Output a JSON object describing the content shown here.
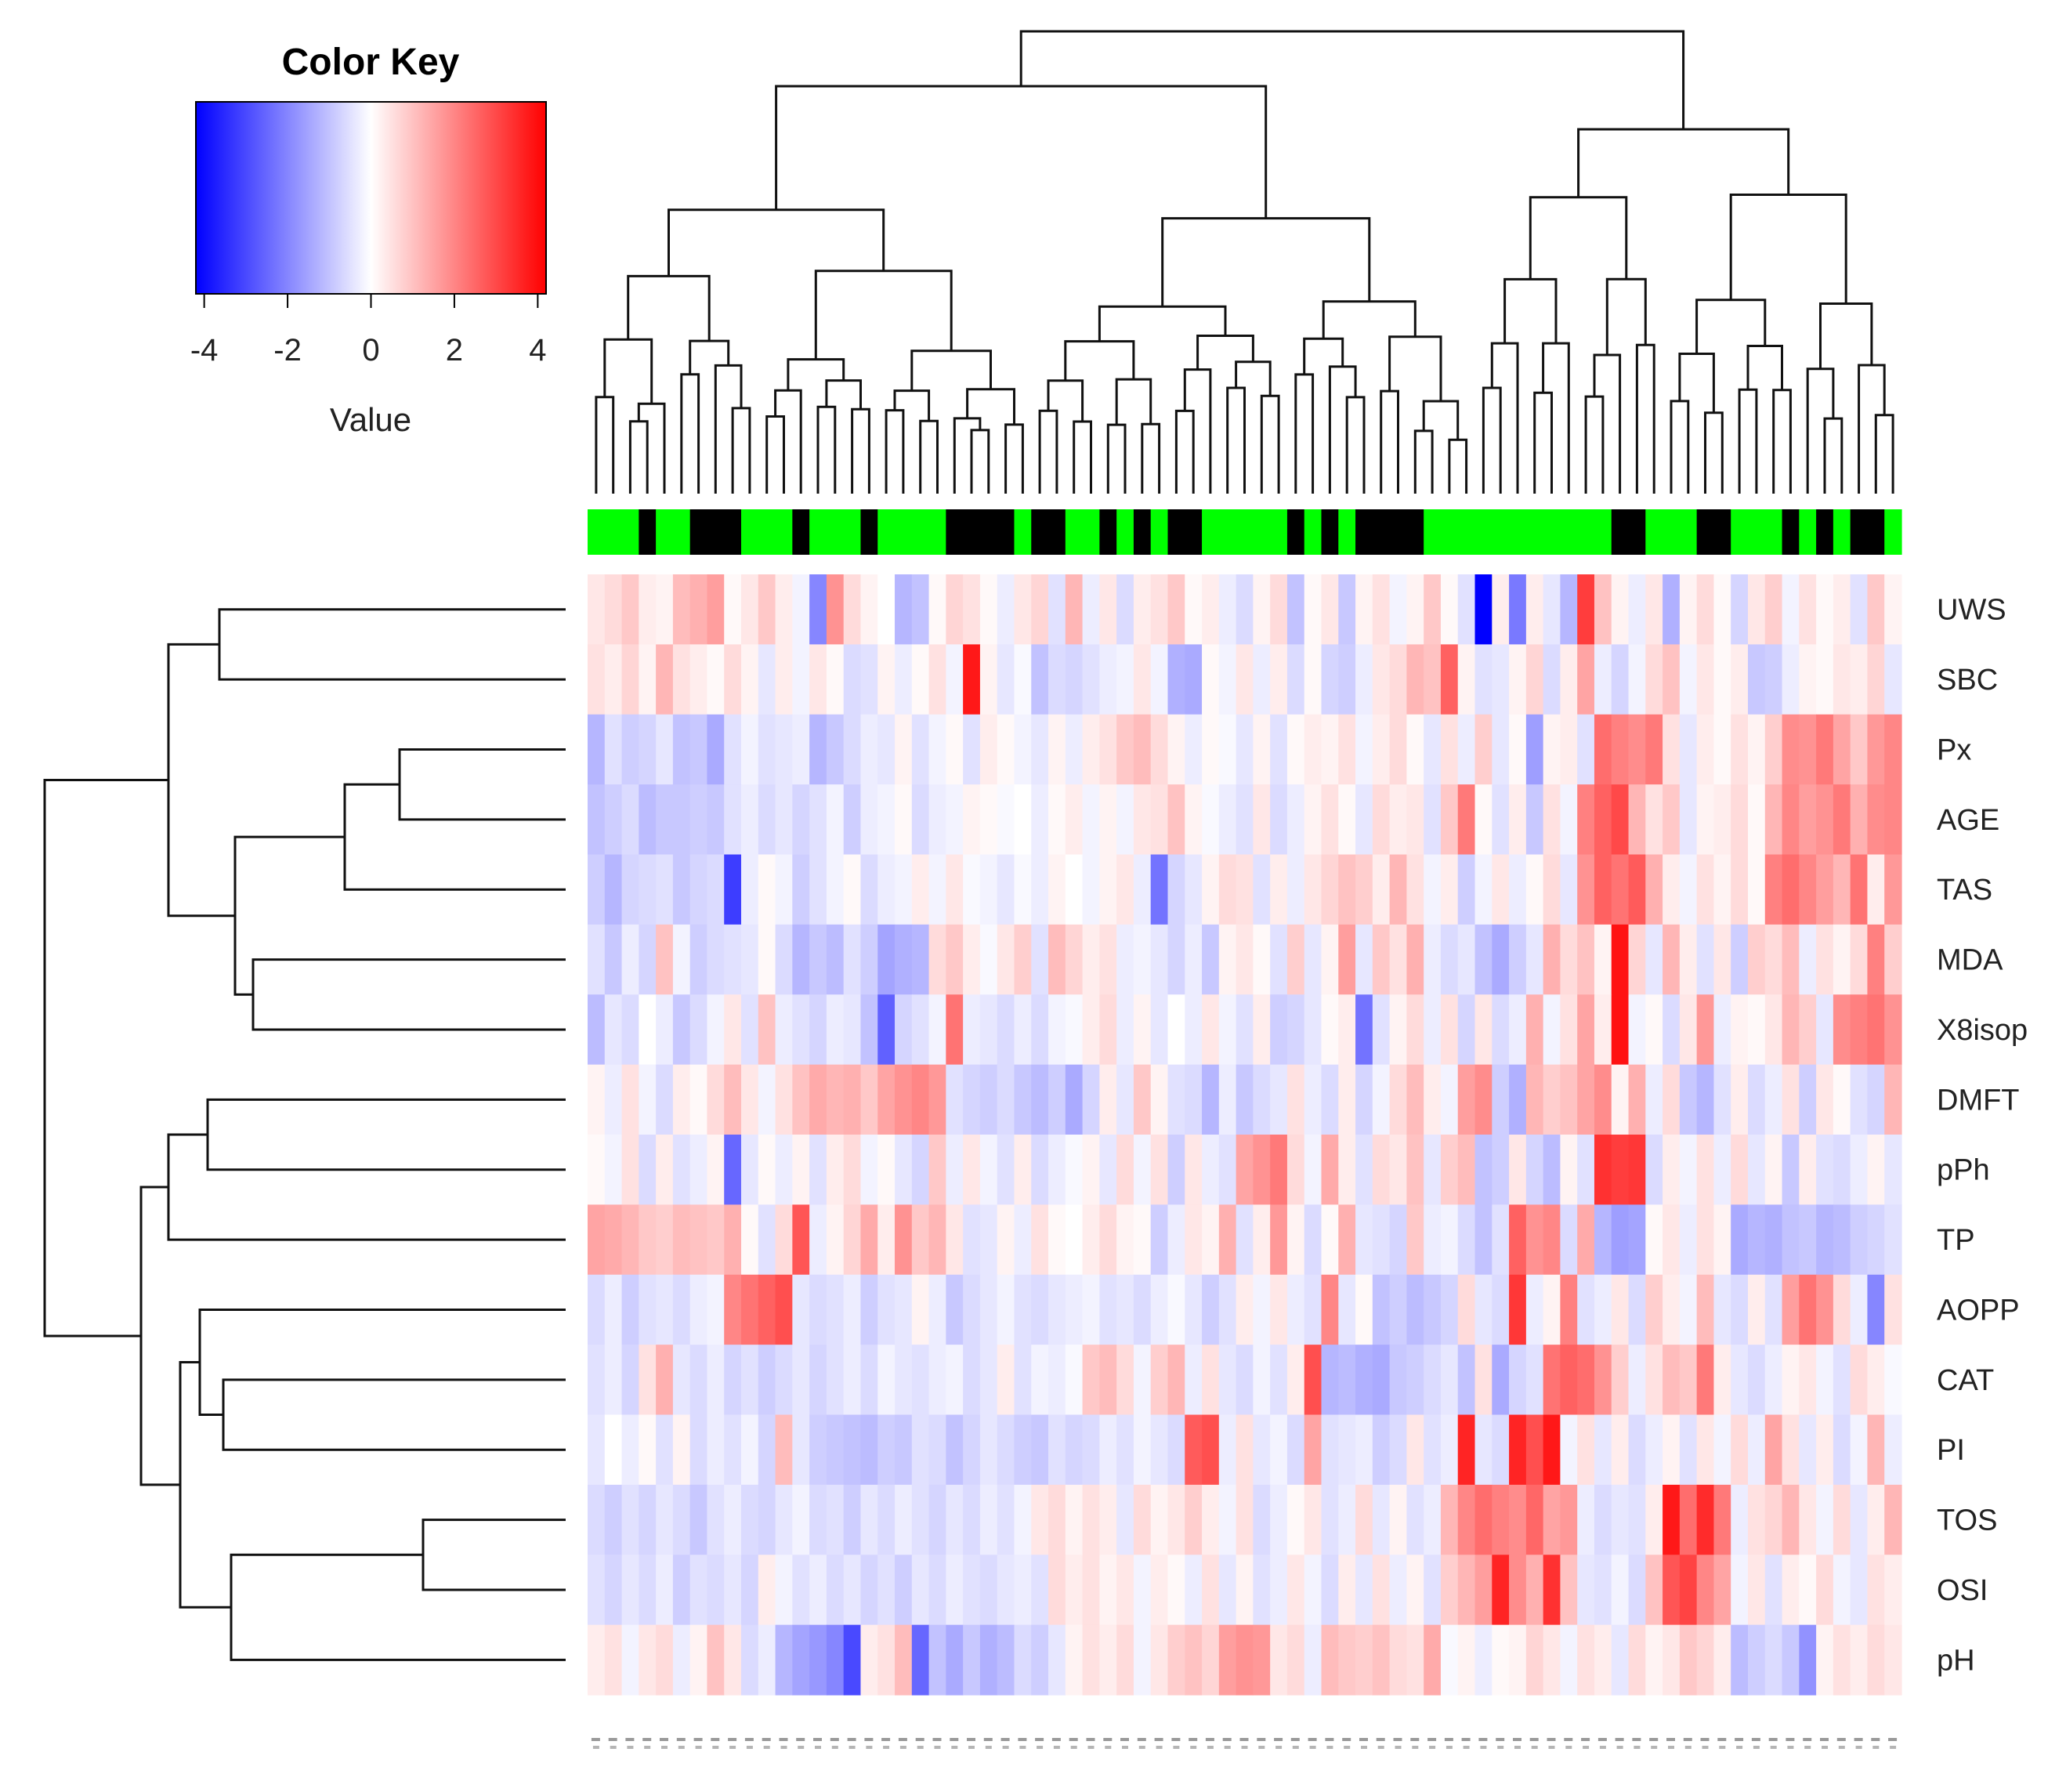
{
  "chart_data": {
    "type": "heatmap",
    "title": "",
    "color_key": {
      "title": "Color Key",
      "label": "Value",
      "ticks": [
        "-4",
        "-2",
        "0",
        "2",
        "4"
      ],
      "range": [
        -4.2,
        4.2
      ],
      "colors": {
        "low": "#0000ff",
        "mid": "#ffffff",
        "high": "#ff0000"
      }
    },
    "rows": [
      "UWS",
      "SBC",
      "Px",
      "AGE",
      "TAS",
      "MDA",
      "X8isop",
      "DMFT",
      "pPh",
      "TP",
      "AOPP",
      "CAT",
      "PI",
      "TOS",
      "OSI",
      "pH"
    ],
    "n_columns": 77,
    "column_groups": [
      0,
      0,
      0,
      1,
      0,
      0,
      1,
      1,
      1,
      0,
      0,
      0,
      1,
      0,
      0,
      0,
      1,
      0,
      0,
      0,
      0,
      1,
      1,
      1,
      1,
      0,
      1,
      1,
      0,
      0,
      1,
      0,
      1,
      0,
      1,
      1,
      0,
      0,
      0,
      0,
      0,
      1,
      0,
      1,
      0,
      1,
      1,
      1,
      1,
      0,
      0,
      0,
      0,
      0,
      0,
      0,
      0,
      0,
      0,
      0,
      1,
      1,
      0,
      0,
      0,
      1,
      1,
      0,
      0,
      0,
      1,
      0,
      1,
      0,
      1,
      1,
      0
    ],
    "column_group_colors": [
      "#00ff00",
      "#000000"
    ],
    "values": [
      [
        0.4,
        0.6,
        0.9,
        0.3,
        0.2,
        1.1,
        1.3,
        1.6,
        0.1,
        0.4,
        0.9,
        0.3,
        -0.2,
        -2.0,
        1.8,
        0.6,
        0.2,
        0.0,
        -1.2,
        -1.0,
        0.1,
        0.7,
        0.5,
        0.1,
        -0.3,
        0.4,
        0.7,
        -0.5,
        1.2,
        -0.3,
        0.4,
        -0.6,
        0.3,
        0.5,
        0.9,
        0.1,
        0.3,
        -0.3,
        -0.6,
        0.2,
        0.6,
        -1.0,
        0.1,
        0.4,
        -0.9,
        0.2,
        0.5,
        -0.2,
        0.2,
        0.9,
        0.1,
        -0.5,
        -4.2,
        0.3,
        -2.2,
        0.3,
        -0.4,
        -1.2,
        3.2,
        1.0,
        0.2,
        -0.3,
        0.4,
        -1.3,
        0.2,
        0.6,
        0.1,
        -0.7,
        0.4,
        0.8,
        -0.2,
        0.5,
        0.1,
        0.3,
        -0.5,
        0.9,
        0.2
      ],
      [
        0.5,
        0.3,
        0.7,
        0.2,
        1.2,
        0.5,
        0.3,
        0.1,
        0.6,
        0.2,
        -0.4,
        0.3,
        -0.2,
        0.4,
        0.1,
        -0.6,
        -0.5,
        0.2,
        -0.3,
        0.1,
        0.5,
        -0.2,
        3.8,
        0.2,
        -0.4,
        -0.1,
        -1.0,
        -0.6,
        -0.7,
        -0.5,
        -0.3,
        -0.2,
        0.4,
        -0.2,
        -1.3,
        -1.4,
        0.1,
        -0.2,
        0.4,
        -0.3,
        0.3,
        -0.6,
        0.1,
        -0.7,
        -0.8,
        -0.3,
        0.4,
        0.6,
        1.2,
        1.0,
        2.6,
        0.2,
        -0.5,
        -0.4,
        0.2,
        0.7,
        -0.6,
        0.3,
        1.5,
        -0.3,
        -0.7,
        -0.2,
        0.6,
        1.0,
        -0.2,
        0.4,
        0.1,
        0.3,
        -0.9,
        -0.8,
        -0.3,
        0.2,
        0.1,
        0.4,
        0.3,
        0.7,
        -0.4
      ],
      [
        -1.2,
        -0.5,
        -0.8,
        -0.7,
        -0.4,
        -1.0,
        -0.9,
        -1.4,
        -0.5,
        -0.2,
        -0.5,
        -0.4,
        -0.3,
        -1.2,
        -0.9,
        -0.6,
        -0.3,
        -0.4,
        0.2,
        -0.5,
        -0.2,
        0.1,
        -0.5,
        0.3,
        0.1,
        -0.2,
        -0.4,
        0.2,
        -0.3,
        0.3,
        0.5,
        0.9,
        1.1,
        0.6,
        0.2,
        -0.3,
        0.1,
        -0.1,
        -0.4,
        0.2,
        -0.5,
        0.1,
        0.3,
        0.2,
        0.5,
        -0.2,
        0.3,
        0.6,
        0.1,
        -0.4,
        0.5,
        -0.3,
        0.8,
        -0.4,
        0.1,
        -1.6,
        0.2,
        0.3,
        -0.5,
        2.4,
        2.1,
        1.9,
        2.2,
        0.5,
        -0.4,
        0.3,
        0.1,
        0.5,
        0.2,
        0.8,
        1.9,
        1.8,
        2.2,
        1.5,
        0.9,
        1.7,
        2.0
      ],
      [
        -1.0,
        -0.8,
        -0.6,
        -1.1,
        -0.9,
        -0.9,
        -0.8,
        -0.9,
        -0.5,
        -0.3,
        -0.6,
        -0.4,
        -0.7,
        -0.5,
        -0.2,
        -0.8,
        -0.3,
        -0.2,
        0.1,
        -0.6,
        -0.3,
        -0.2,
        0.2,
        0.1,
        -0.1,
        0.0,
        -0.3,
        0.1,
        0.3,
        -0.2,
        0.2,
        -0.2,
        0.4,
        0.5,
        1.0,
        0.2,
        -0.1,
        -0.3,
        -0.5,
        0.4,
        -0.6,
        -0.3,
        0.2,
        0.5,
        0.1,
        -0.4,
        0.6,
        0.3,
        0.4,
        -0.5,
        0.9,
        2.2,
        0.1,
        -0.5,
        0.3,
        -0.9,
        0.5,
        -0.2,
        2.1,
        2.6,
        3.0,
        1.2,
        0.5,
        0.9,
        -0.4,
        0.2,
        0.3,
        0.6,
        0.1,
        1.2,
        2.0,
        1.6,
        1.8,
        2.2,
        1.3,
        1.9,
        2.0
      ],
      [
        -0.8,
        -1.2,
        -0.7,
        -0.6,
        -0.5,
        -0.9,
        -0.7,
        -0.6,
        -3.2,
        -0.3,
        0.1,
        -0.2,
        -0.8,
        -0.5,
        -0.2,
        0.1,
        -0.6,
        -0.3,
        -0.2,
        0.3,
        -0.2,
        0.4,
        -0.1,
        -0.2,
        -0.4,
        -0.1,
        -0.3,
        0.2,
        0.0,
        -0.2,
        0.2,
        0.4,
        -0.3,
        -2.3,
        -0.7,
        -0.4,
        0.2,
        0.6,
        0.5,
        -0.5,
        0.3,
        -0.3,
        0.4,
        0.7,
        1.0,
        0.8,
        0.3,
        1.2,
        0.5,
        -0.2,
        0.3,
        -0.8,
        -0.2,
        0.4,
        -0.3,
        0.1,
        0.6,
        -0.4,
        1.8,
        2.6,
        2.3,
        2.7,
        1.3,
        0.3,
        -0.2,
        0.5,
        0.2,
        0.6,
        0.1,
        2.1,
        2.4,
        2.0,
        1.6,
        1.2,
        2.3,
        0.3,
        1.7
      ],
      [
        -0.5,
        -0.9,
        -0.3,
        -0.7,
        1.0,
        -0.2,
        -0.8,
        -0.6,
        -0.5,
        -0.4,
        0.1,
        -0.6,
        -1.2,
        -0.9,
        -1.1,
        -0.5,
        -0.8,
        -1.5,
        -1.3,
        -1.2,
        0.6,
        0.9,
        0.3,
        -0.1,
        0.4,
        0.8,
        -0.5,
        1.1,
        0.7,
        0.3,
        0.5,
        -0.3,
        -0.2,
        -0.4,
        -0.7,
        -0.3,
        -0.9,
        0.2,
        0.4,
        0.1,
        -0.5,
        0.8,
        -0.4,
        0.2,
        1.6,
        -0.4,
        0.9,
        0.5,
        1.3,
        -0.3,
        -0.6,
        -0.4,
        -1.0,
        -1.4,
        -0.8,
        -0.4,
        1.3,
        0.6,
        1.0,
        0.2,
        3.9,
        0.7,
        -0.4,
        1.2,
        0.3,
        -0.5,
        0.4,
        -0.8,
        0.8,
        0.6,
        1.1,
        -0.3,
        0.5,
        0.2,
        0.6,
        2.1,
        0.8
      ],
      [
        -1.1,
        -0.4,
        -0.6,
        0.0,
        -0.3,
        -0.9,
        -0.6,
        -0.2,
        0.4,
        -0.5,
        1.0,
        -0.3,
        -0.5,
        -0.7,
        -0.3,
        -0.4,
        -1.0,
        -2.6,
        -0.7,
        -0.5,
        -0.2,
        2.3,
        -0.3,
        -0.4,
        -0.6,
        -0.3,
        -0.6,
        -0.2,
        -0.1,
        0.3,
        0.6,
        -0.3,
        0.2,
        -0.4,
        0.0,
        -0.3,
        0.4,
        -0.2,
        -0.5,
        0.3,
        -0.8,
        -0.7,
        -0.4,
        0.1,
        0.3,
        -2.3,
        -0.5,
        0.2,
        0.6,
        -0.3,
        0.5,
        -0.7,
        0.4,
        -0.6,
        -0.3,
        1.3,
        -0.2,
        0.5,
        1.5,
        0.3,
        3.9,
        -0.2,
        0.1,
        -0.6,
        0.4,
        1.7,
        -0.3,
        0.2,
        0.1,
        0.4,
        1.2,
        0.8,
        -0.4,
        1.9,
        2.1,
        2.3,
        1.8
      ],
      [
        0.2,
        -0.3,
        0.5,
        -0.2,
        -0.6,
        0.3,
        0.1,
        0.6,
        1.1,
        0.4,
        -0.2,
        0.5,
        1.0,
        1.4,
        1.2,
        1.3,
        0.9,
        1.5,
        1.8,
        2.0,
        1.7,
        -0.5,
        -0.7,
        -0.8,
        -0.6,
        -0.9,
        -1.1,
        -0.8,
        -1.4,
        -0.7,
        0.3,
        -0.4,
        0.9,
        0.2,
        -0.5,
        -0.6,
        -1.2,
        -0.3,
        -0.9,
        -0.6,
        -0.4,
        0.5,
        -0.3,
        -0.6,
        0.3,
        -0.7,
        -0.2,
        0.6,
        1.1,
        0.3,
        -0.2,
        1.6,
        1.9,
        -0.8,
        -1.3,
        1.2,
        0.8,
        1.0,
        1.5,
        1.9,
        0.2,
        1.3,
        -0.3,
        0.6,
        -0.9,
        -1.2,
        -0.5,
        0.3,
        -0.6,
        -0.3,
        0.5,
        -0.8,
        0.4,
        0.1,
        -0.5,
        -0.7,
        1.2
      ],
      [
        0.1,
        -0.2,
        0.5,
        -0.6,
        0.3,
        -0.5,
        -0.3,
        0.2,
        -2.5,
        -0.4,
        0.1,
        -0.3,
        0.2,
        -0.5,
        0.3,
        0.6,
        -0.2,
        0.1,
        -0.4,
        -0.7,
        0.9,
        -0.3,
        0.4,
        -0.2,
        -0.5,
        0.3,
        -0.6,
        -0.3,
        -0.1,
        0.2,
        -0.4,
        0.6,
        -0.2,
        0.5,
        -0.8,
        0.4,
        -0.3,
        -0.5,
        1.5,
        1.8,
        2.2,
        0.6,
        -0.2,
        1.4,
        0.3,
        -0.5,
        0.6,
        0.4,
        1.0,
        -0.4,
        0.8,
        1.1,
        -1.0,
        -0.8,
        0.4,
        -0.7,
        -1.1,
        0.2,
        -0.5,
        3.4,
        3.2,
        3.3,
        -0.6,
        0.3,
        -0.2,
        0.5,
        -0.3,
        0.6,
        -0.4,
        0.2,
        -0.9,
        0.3,
        -0.5,
        -0.6,
        -0.3,
        0.2,
        -0.4
      ],
      [
        1.5,
        1.4,
        1.2,
        0.9,
        0.8,
        1.1,
        1.0,
        0.9,
        1.3,
        0.1,
        -0.5,
        0.6,
        2.8,
        -0.3,
        0.2,
        0.7,
        1.4,
        0.3,
        1.8,
        0.9,
        1.2,
        0.4,
        -0.5,
        -0.4,
        0.2,
        -0.3,
        0.5,
        0.1,
        0.0,
        0.3,
        0.6,
        0.2,
        0.1,
        -0.8,
        -0.3,
        0.4,
        0.2,
        1.3,
        -0.5,
        0.3,
        1.7,
        0.2,
        -0.6,
        0.1,
        1.3,
        -0.4,
        -0.5,
        -0.7,
        0.9,
        -0.3,
        -0.2,
        -0.6,
        -1.0,
        -0.5,
        2.6,
        1.8,
        2.0,
        -0.6,
        1.4,
        -1.2,
        -1.6,
        -1.5,
        0.1,
        0.4,
        -0.3,
        0.5,
        0.2,
        -1.4,
        -1.2,
        -1.3,
        -1.0,
        -0.9,
        -1.2,
        -1.1,
        -0.8,
        -0.7,
        -0.5
      ],
      [
        -0.6,
        -0.3,
        -0.8,
        -0.5,
        -0.4,
        -0.6,
        -0.3,
        -0.2,
        2.0,
        2.3,
        2.6,
        2.9,
        -0.4,
        -0.6,
        -0.5,
        -0.3,
        -0.8,
        -0.5,
        -0.4,
        0.2,
        -0.3,
        -0.9,
        -0.6,
        -0.4,
        -0.2,
        -0.5,
        -0.6,
        -0.4,
        -0.3,
        -0.2,
        -0.5,
        -0.4,
        -0.6,
        -0.3,
        -0.1,
        -0.4,
        -0.8,
        -0.5,
        0.3,
        -0.2,
        0.4,
        -0.3,
        -0.5,
        2.0,
        -0.4,
        0.1,
        -1.0,
        -0.8,
        -1.1,
        -0.9,
        -0.7,
        0.6,
        -0.4,
        -0.6,
        3.3,
        -0.3,
        0.2,
        2.1,
        -0.5,
        -0.3,
        0.4,
        -0.6,
        0.8,
        0.3,
        -0.2,
        1.1,
        -0.4,
        -0.6,
        0.3,
        -0.5,
        1.6,
        2.3,
        1.8,
        0.6,
        -0.3,
        -2.0,
        0.5
      ],
      [
        -0.5,
        -0.3,
        -0.7,
        0.5,
        1.3,
        -0.4,
        -0.6,
        -0.3,
        -0.7,
        -0.5,
        -0.8,
        -0.6,
        -0.4,
        -0.7,
        -0.5,
        -0.3,
        -0.6,
        -0.2,
        -0.4,
        -0.5,
        -0.3,
        -0.2,
        -0.6,
        -0.4,
        0.3,
        -0.5,
        -0.2,
        -0.3,
        -0.1,
        0.9,
        1.1,
        0.6,
        -0.2,
        0.8,
        1.2,
        -0.3,
        0.5,
        -0.4,
        -0.6,
        -0.2,
        -0.5,
        0.3,
        2.9,
        -1.2,
        -1.1,
        -1.3,
        -1.4,
        -0.9,
        -0.8,
        -0.6,
        -0.4,
        -1.0,
        0.5,
        -1.4,
        -0.7,
        -0.5,
        2.3,
        2.6,
        2.4,
        1.8,
        0.8,
        -0.3,
        0.5,
        1.1,
        0.9,
        2.2,
        0.3,
        -0.4,
        -0.6,
        -0.3,
        0.2,
        0.4,
        -0.2,
        -0.5,
        0.6,
        0.3,
        -0.1
      ],
      [
        -0.4,
        0.0,
        -0.3,
        0.1,
        -0.5,
        0.2,
        -0.6,
        -0.3,
        -0.5,
        -0.2,
        -0.7,
        1.1,
        -0.4,
        -0.8,
        -0.9,
        -1.0,
        -1.1,
        -0.8,
        -0.9,
        -0.5,
        -0.6,
        -1.0,
        -0.7,
        -0.4,
        -0.6,
        -0.8,
        -0.9,
        -0.5,
        -0.7,
        -0.6,
        -0.3,
        -0.5,
        -0.2,
        -0.4,
        -0.6,
        2.7,
        2.9,
        -0.3,
        0.5,
        -0.4,
        -0.2,
        -0.6,
        1.5,
        -0.5,
        -0.4,
        -0.3,
        -0.8,
        -0.6,
        0.4,
        -0.5,
        -0.3,
        3.6,
        -0.4,
        -0.6,
        3.6,
        2.9,
        3.8,
        -0.2,
        0.5,
        -0.4,
        0.3,
        -0.6,
        -0.3,
        0.2,
        -0.5,
        0.4,
        -0.2,
        0.6,
        -0.3,
        1.5,
        0.5,
        -0.4,
        0.3,
        -0.6,
        -0.2,
        1.2,
        -0.3
      ],
      [
        -0.6,
        -0.8,
        -0.5,
        -0.7,
        -0.4,
        -0.6,
        -0.9,
        -0.5,
        -0.3,
        -0.6,
        -0.7,
        -0.4,
        -0.2,
        -0.6,
        -0.5,
        -0.8,
        -0.4,
        -0.6,
        -0.3,
        -0.5,
        -0.7,
        -0.4,
        -0.6,
        -0.3,
        -0.5,
        -0.2,
        0.4,
        0.6,
        0.2,
        0.5,
        0.3,
        -0.4,
        0.6,
        0.2,
        0.4,
        0.8,
        0.3,
        -0.2,
        0.5,
        -0.6,
        -0.3,
        0.1,
        0.4,
        -0.5,
        -0.3,
        0.6,
        -0.4,
        0.2,
        -0.5,
        -0.3,
        1.2,
        2.0,
        2.4,
        2.1,
        1.9,
        2.5,
        1.5,
        1.7,
        -0.3,
        -0.6,
        -0.4,
        -0.5,
        0.3,
        3.8,
        2.4,
        3.5,
        2.2,
        -0.3,
        0.5,
        0.7,
        1.2,
        0.4,
        -0.2,
        0.6,
        -0.4,
        0.3,
        1.2
      ],
      [
        -0.5,
        -0.7,
        -0.4,
        -0.6,
        -0.3,
        -0.8,
        -0.5,
        -0.6,
        -0.4,
        -0.7,
        0.3,
        -0.2,
        -0.5,
        -0.3,
        -0.6,
        -0.4,
        -0.7,
        -0.5,
        -0.8,
        -0.4,
        -0.6,
        -0.3,
        -0.5,
        -0.6,
        -0.4,
        -0.3,
        -0.5,
        0.6,
        0.3,
        0.5,
        0.2,
        0.4,
        -0.2,
        0.3,
        0.1,
        -0.3,
        0.5,
        -0.4,
        0.2,
        -0.5,
        -0.3,
        0.4,
        -0.2,
        -0.6,
        0.3,
        -0.4,
        0.5,
        -0.3,
        0.2,
        -0.5,
        0.8,
        1.2,
        1.6,
        3.6,
        1.9,
        1.3,
        3.4,
        1.0,
        -0.4,
        -0.5,
        -0.2,
        -0.6,
        1.0,
        2.8,
        3.1,
        2.0,
        1.5,
        -0.2,
        0.4,
        -0.5,
        0.3,
        0.1,
        0.6,
        -0.2,
        -0.4,
        0.5,
        0.3
      ],
      [
        0.3,
        0.5,
        -0.2,
        0.4,
        0.6,
        -0.3,
        0.2,
        1.0,
        0.4,
        -0.6,
        -0.3,
        -1.2,
        -1.5,
        -1.7,
        -2.0,
        -3.0,
        0.3,
        0.5,
        1.1,
        -2.5,
        -1.0,
        -1.4,
        -0.9,
        -1.3,
        -1.1,
        -0.6,
        -0.8,
        -0.4,
        0.2,
        0.5,
        0.3,
        0.6,
        -0.2,
        0.4,
        0.8,
        1.0,
        0.7,
        1.6,
        1.8,
        1.7,
        0.4,
        0.6,
        -0.3,
        1.1,
        0.9,
        0.8,
        1.0,
        0.6,
        0.5,
        1.4,
        -0.1,
        0.2,
        -0.3,
        0.1,
        0.2,
        0.7,
        0.4,
        -0.2,
        0.5,
        0.3,
        -0.4,
        0.6,
        0.2,
        0.4,
        0.9,
        0.7,
        0.3,
        -1.1,
        -0.8,
        -0.6,
        -0.9,
        -1.8,
        0.2,
        0.5,
        0.3,
        0.6,
        0.4
      ]
    ]
  }
}
